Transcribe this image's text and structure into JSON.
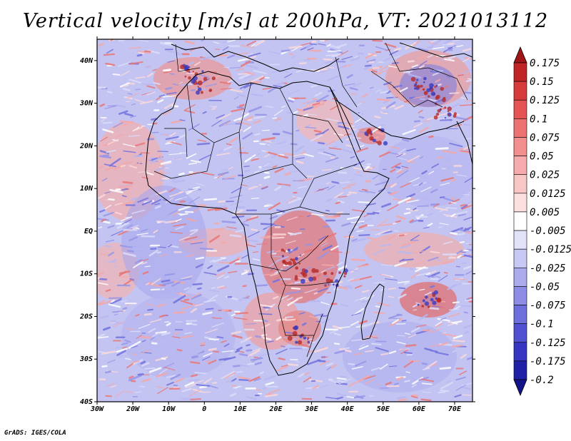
{
  "title": "Vertical velocity [m/s] at 200hPa, VT: 2021013112",
  "credit": "GrADS: IGES/COLA",
  "map": {
    "lat_labels": [
      "40N",
      "30N",
      "20N",
      "10N",
      "EQ",
      "10S",
      "20S",
      "30S",
      "40S"
    ],
    "lon_labels": [
      "30W",
      "20W",
      "10W",
      "0",
      "10E",
      "20E",
      "30E",
      "40E",
      "50E",
      "60E",
      "70E"
    ],
    "lat_range": [
      -40,
      45
    ],
    "lon_range": [
      -30,
      75
    ]
  },
  "colorbar": {
    "levels": [
      "0.175",
      "0.15",
      "0.125",
      "0.1",
      "0.075",
      "0.05",
      "0.025",
      "0.0125",
      "0.005",
      "-0.005",
      "-0.0125",
      "-0.025",
      "-0.05",
      "-0.075",
      "-0.1",
      "-0.125",
      "-0.175",
      "-0.2"
    ],
    "colors": [
      "#a01515",
      "#c02424",
      "#d63a3a",
      "#e45454",
      "#ec7272",
      "#f29090",
      "#f6acac",
      "#f9c6c6",
      "#fce0e0",
      "#ffffff",
      "#e2e2fb",
      "#c8c8f5",
      "#ababee",
      "#8d8de6",
      "#6e6edd",
      "#5050d2",
      "#3535c2",
      "#2020a6",
      "#14148a"
    ]
  }
}
